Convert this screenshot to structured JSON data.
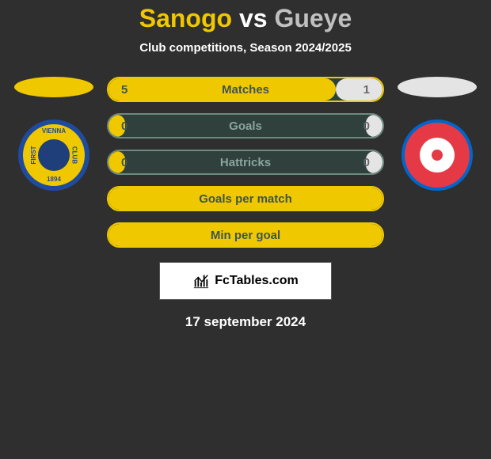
{
  "title": {
    "left": "Sanogo",
    "vs": "vs",
    "right": "Gueye"
  },
  "subtitle": "Club competitions, Season 2024/2025",
  "colors": {
    "left_accent": "#f0c800",
    "right_accent": "#e4e4e4",
    "bar_bg": "#2f403d",
    "bar_border_full": "#f0c800",
    "bar_label_on_yellow": "#3d5550",
    "bar_label_on_dark": "#8aa59c",
    "value_on_yellow": "#3d5550",
    "value_on_light": "#666666"
  },
  "stats": [
    {
      "label": "Matches",
      "left_value": "5",
      "right_value": "1",
      "left_pct": 83,
      "right_pct": 17,
      "border": "#f0c800",
      "label_color": "#3d5550"
    },
    {
      "label": "Goals",
      "left_value": "0",
      "right_value": "0",
      "left_pct": 6,
      "right_pct": 6,
      "border": "#6d8a7f",
      "label_color": "#8aa59c"
    },
    {
      "label": "Hattricks",
      "left_value": "0",
      "right_value": "0",
      "left_pct": 6,
      "right_pct": 6,
      "border": "#6d8a7f",
      "label_color": "#8aa59c"
    },
    {
      "label": "Goals per match",
      "left_value": "",
      "right_value": "",
      "left_pct": 100,
      "right_pct": 0,
      "border": "#f0c800",
      "label_color": "#3d5550"
    },
    {
      "label": "Min per goal",
      "left_value": "",
      "right_value": "",
      "left_pct": 100,
      "right_pct": 0,
      "border": "#f0c800",
      "label_color": "#3d5550"
    }
  ],
  "branding": "FcTables.com",
  "date": "17 september 2024",
  "logos": {
    "left": {
      "name": "first-vienna-fc",
      "year": "1894"
    },
    "right": {
      "name": "fk-rudar"
    }
  }
}
